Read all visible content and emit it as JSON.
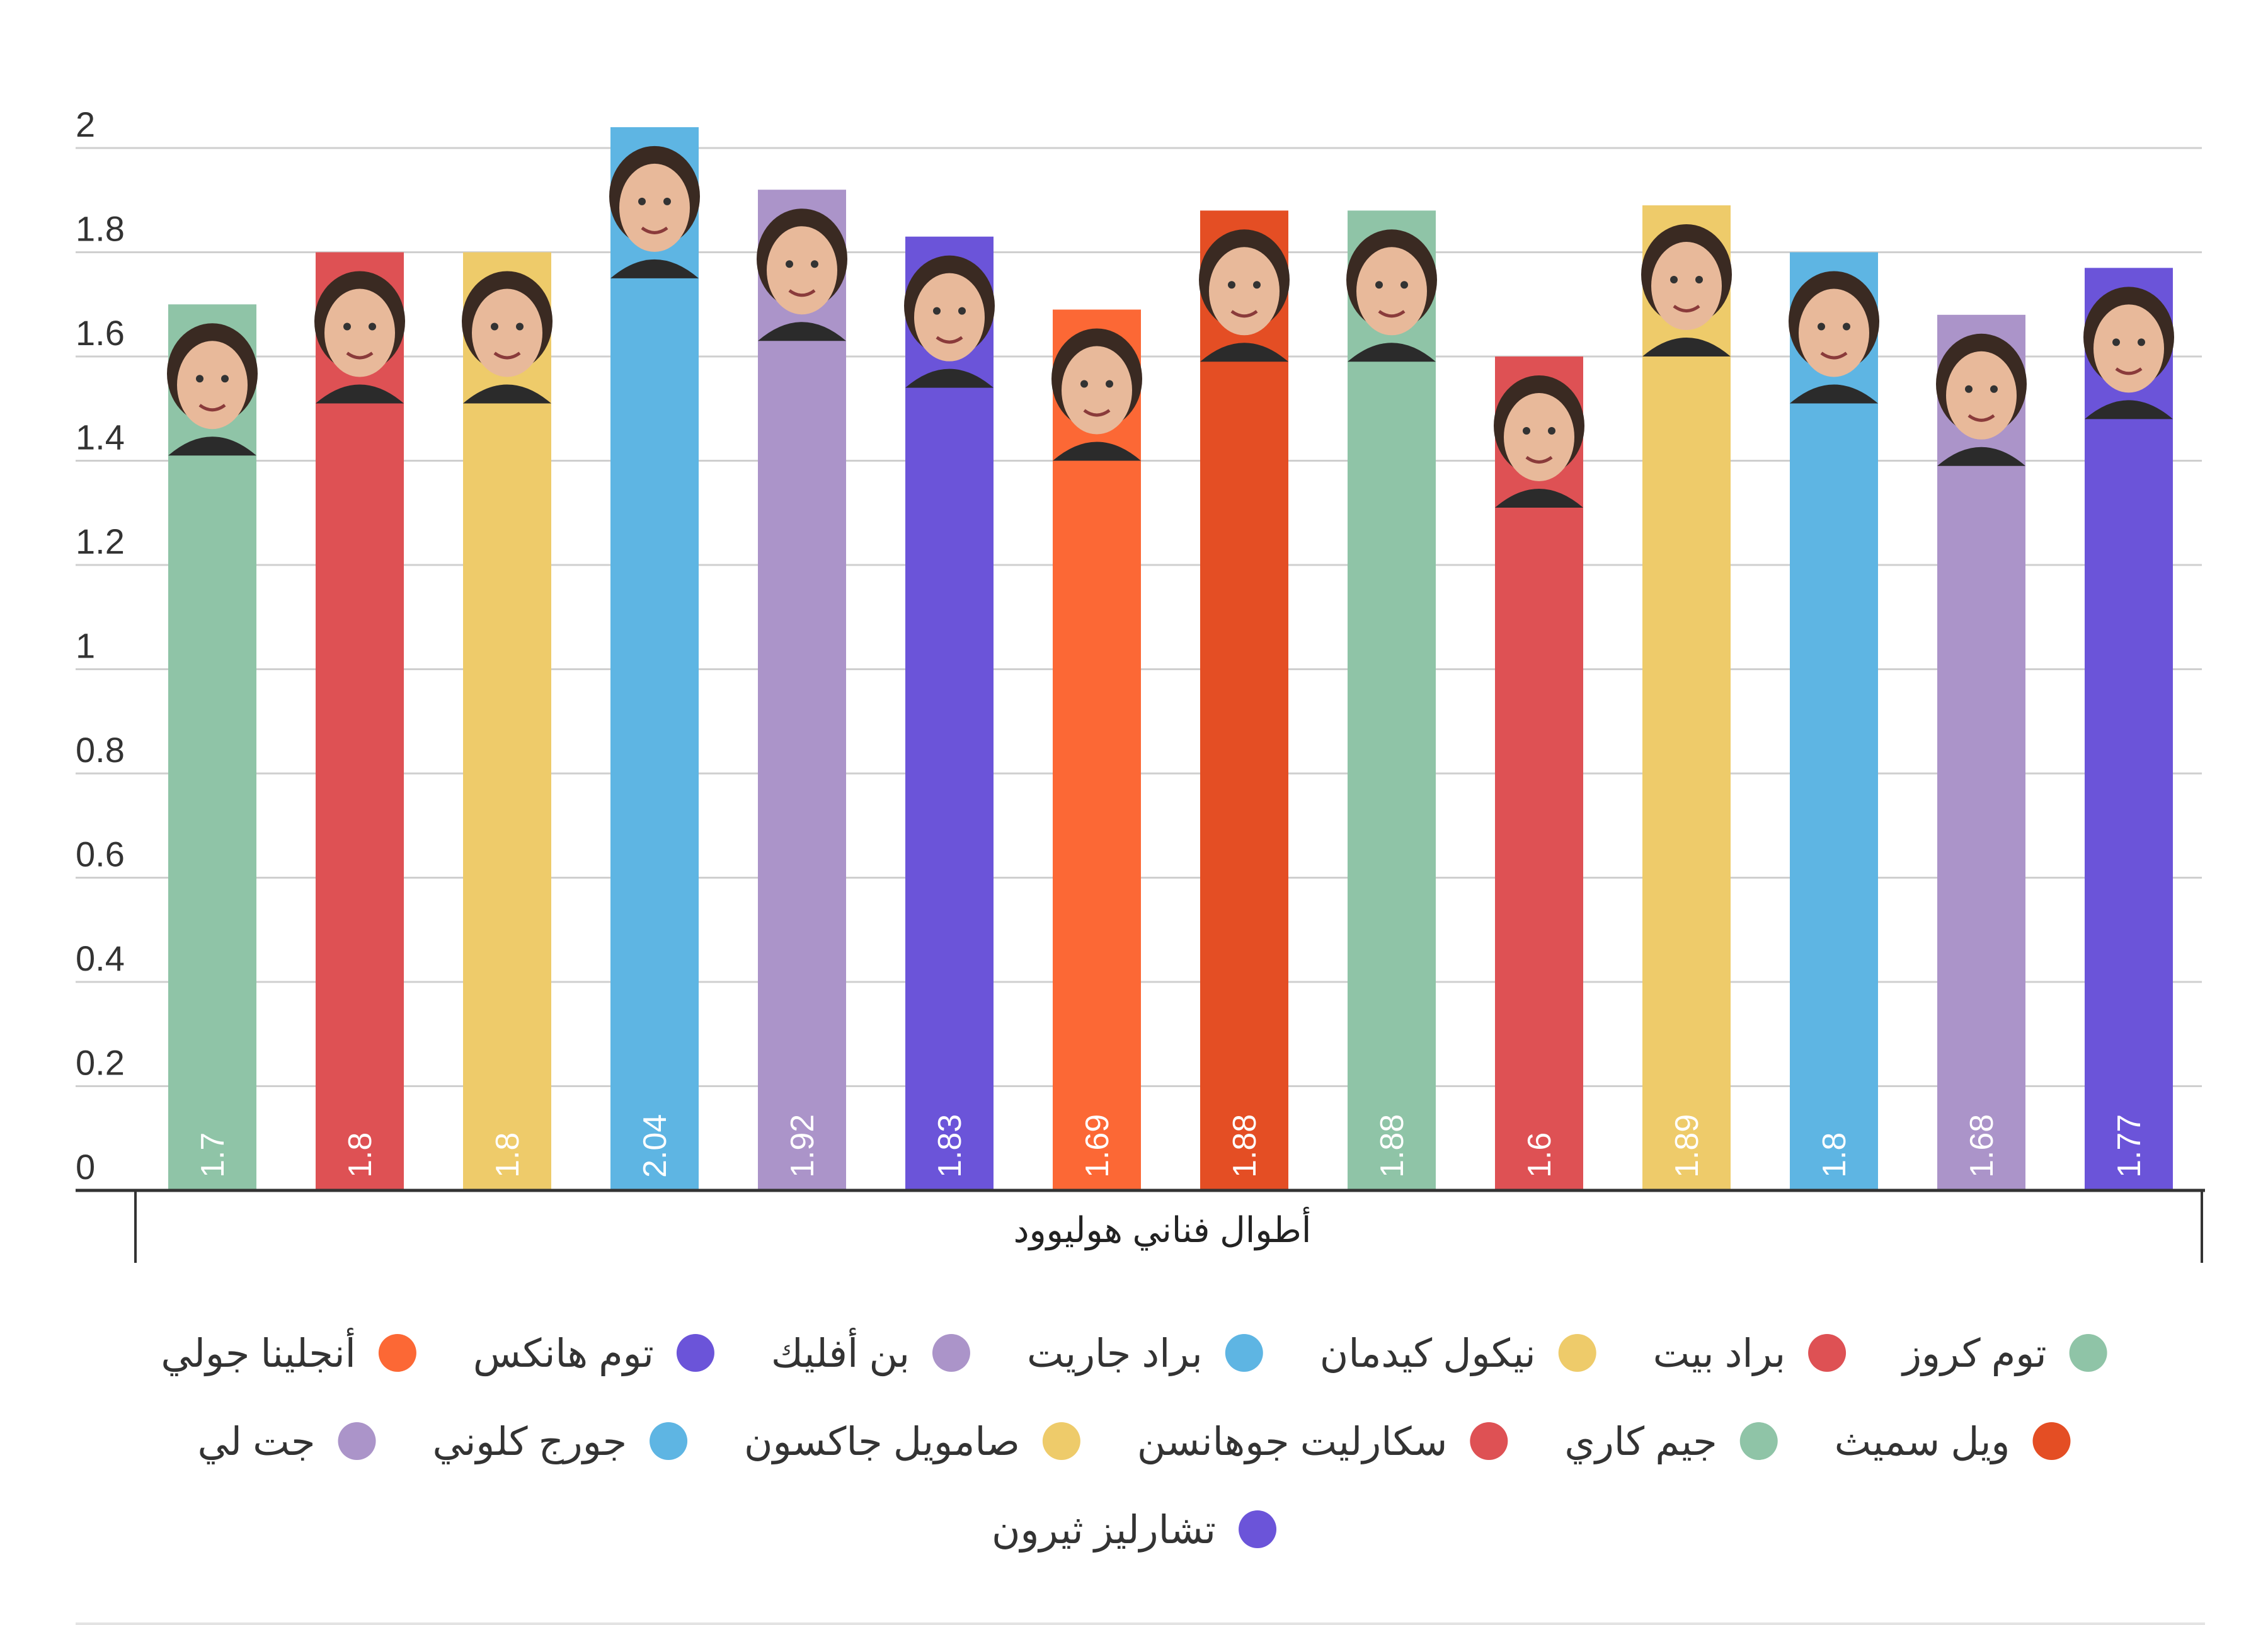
{
  "chart_data": {
    "type": "bar",
    "title": "",
    "xlabel": "أطوال فناني هوليوود",
    "ylabel": "",
    "ylim": [
      0,
      2
    ],
    "yticks": [
      0,
      0.2,
      0.4,
      0.6,
      0.8,
      1,
      1.2,
      1.4,
      1.6,
      1.8,
      2
    ],
    "grid": true,
    "legend_position": "bottom",
    "categories": [
      "توم كروز",
      "براد بيت",
      "نيكول كيدمان",
      "براد جاريت",
      "بن أفليك",
      "توم هانكس",
      "أنجلينا جولي",
      "ويل سميث",
      "جيم كاري",
      "سكارليت جوهانسن",
      "صامويل جاكسون",
      "جورج كلوني",
      "جت لي",
      "تشارليز ثيرون"
    ],
    "values": [
      1.7,
      1.8,
      1.8,
      2.04,
      1.92,
      1.83,
      1.69,
      1.88,
      1.88,
      1.6,
      1.89,
      1.8,
      1.68,
      1.77
    ],
    "value_labels": [
      "1.7",
      "1.8",
      "1.8",
      "2.04",
      "1.92",
      "1.83",
      "1.69",
      "1.88",
      "1.88",
      "1.6",
      "1.89",
      "1.8",
      "1.68",
      "1.77"
    ],
    "colors": [
      "#8fc4a7",
      "#de5154",
      "#eecb6a",
      "#5eb5e3",
      "#ab94c9",
      "#6b54d9",
      "#fc6835",
      "#e44e24",
      "#8fc4a7",
      "#de5154",
      "#eecb6a",
      "#5eb5e3",
      "#ab94c9",
      "#6b54d9"
    ]
  }
}
